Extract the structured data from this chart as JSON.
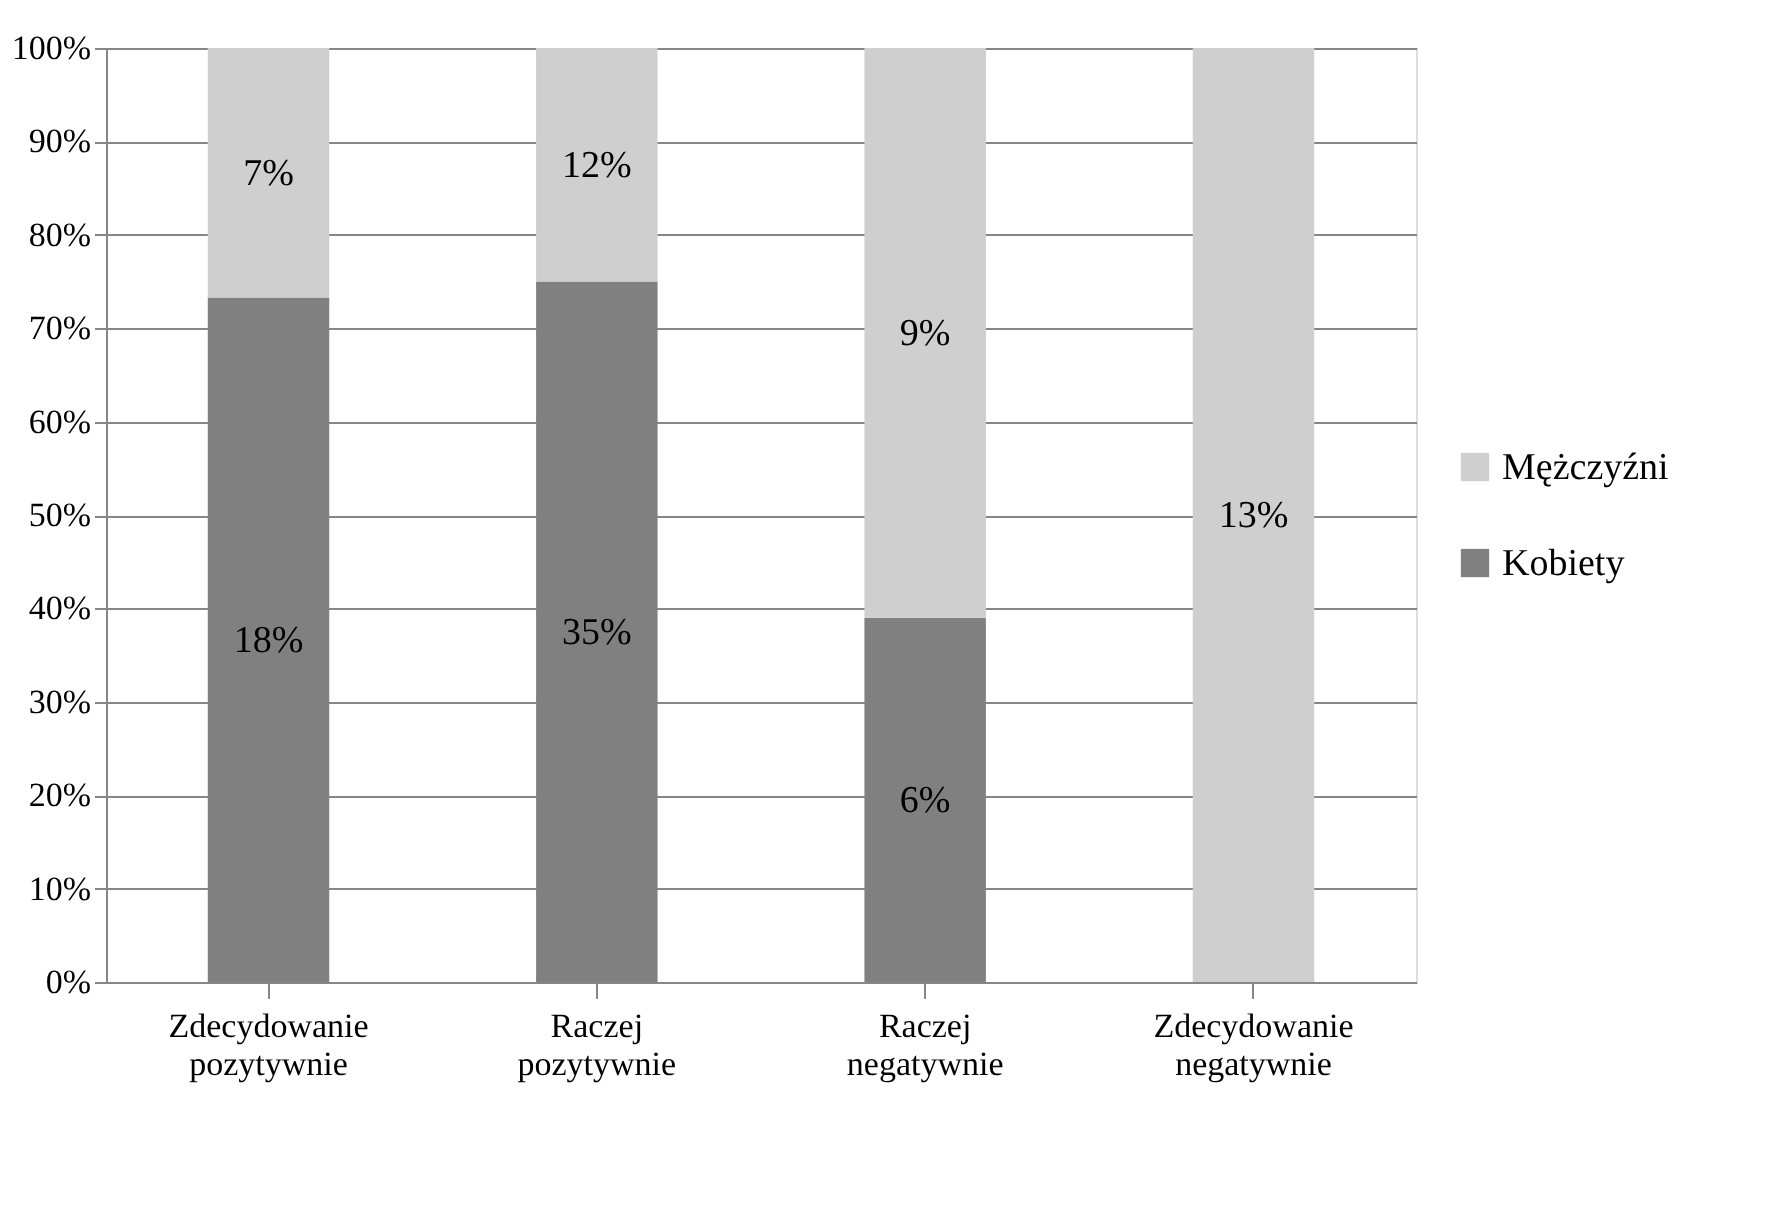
{
  "chart_data": {
    "type": "bar",
    "stacked": true,
    "categories": [
      "Zdecydowanie pozytywnie",
      "Raczej pozytywnie",
      "Raczej negatywnie",
      "Zdecydowanie negatywnie"
    ],
    "series": [
      {
        "name": "Kobiety",
        "color": "#808080",
        "values": [
          73.3,
          75,
          39,
          0
        ]
      },
      {
        "name": "Mężczyźni",
        "color": "#d0cfd0",
        "values": [
          26.7,
          25,
          61,
          100
        ]
      }
    ],
    "annotations": [
      "18%",
      "7%",
      "35%",
      "12%",
      "6%",
      "9%",
      "13%"
    ],
    "ylim": [
      0,
      100
    ],
    "yticks": [
      {
        "value": 0,
        "label": "0%"
      },
      {
        "value": 10,
        "label": "10%"
      },
      {
        "value": 20,
        "label": "20%"
      },
      {
        "value": 30,
        "label": "30%"
      },
      {
        "value": 40,
        "label": "40%"
      },
      {
        "value": 50,
        "label": "50%"
      },
      {
        "value": 60,
        "label": "60%"
      },
      {
        "value": 70,
        "label": "70%"
      },
      {
        "value": 80,
        "label": "80%"
      },
      {
        "value": 90,
        "label": "90%"
      },
      {
        "value": 100,
        "label": "100%"
      }
    ],
    "grid": "y",
    "legend": "right"
  }
}
